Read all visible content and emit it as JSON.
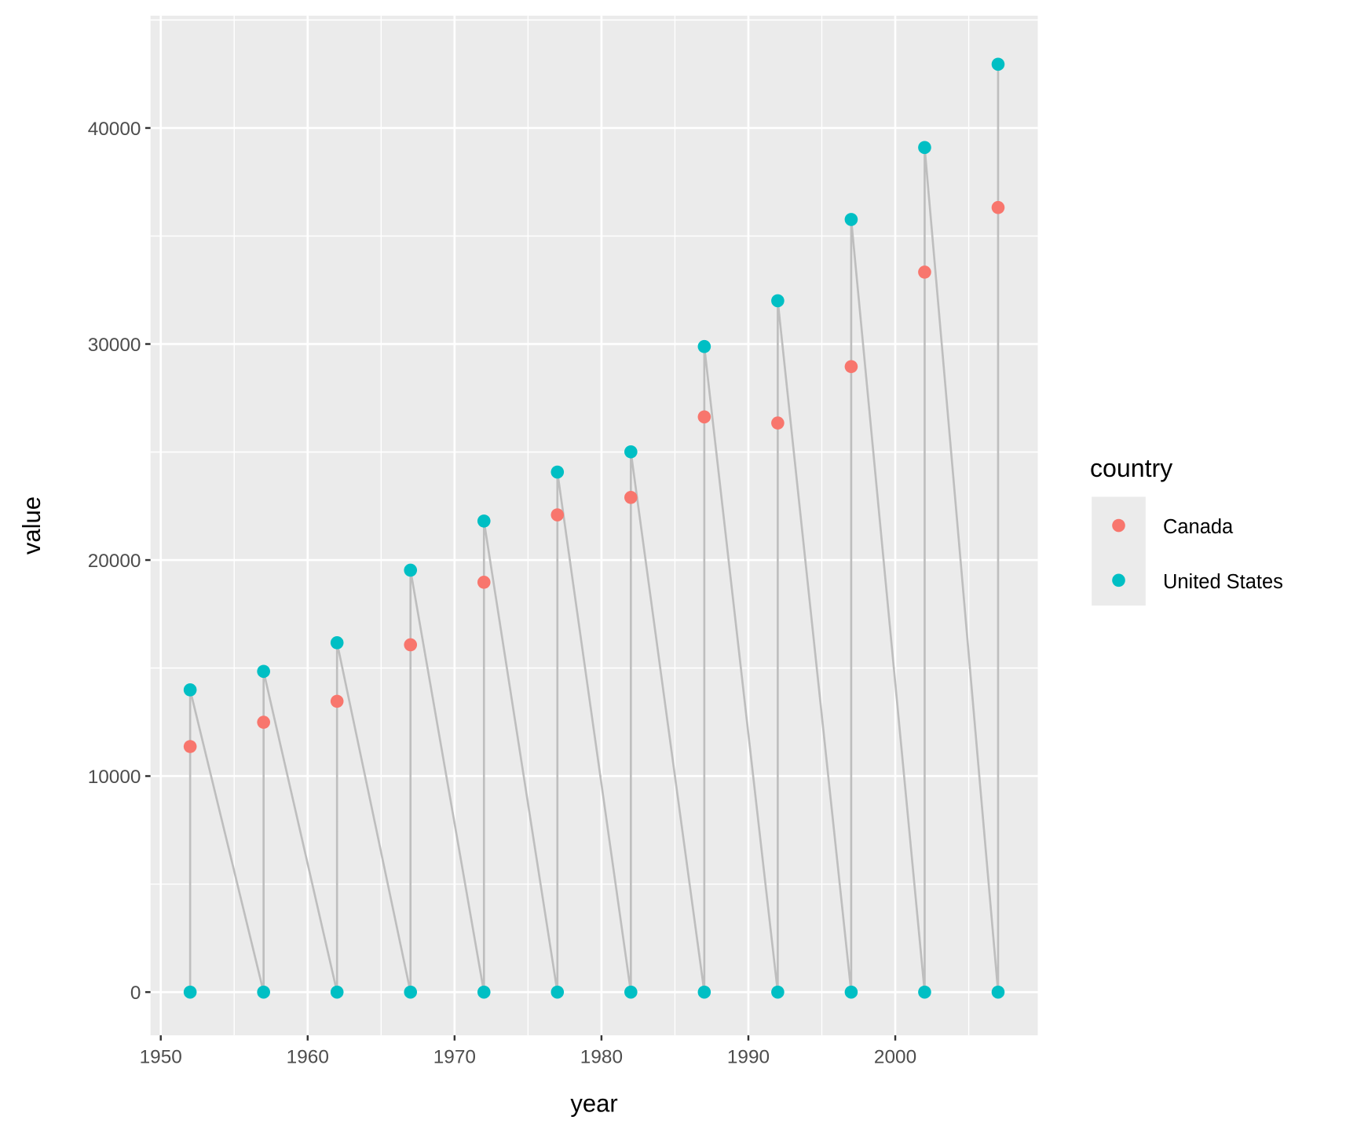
{
  "chart_data": {
    "type": "scatter",
    "title": "",
    "xlabel": "year",
    "ylabel": "value",
    "xlim": [
      1949.3,
      2009.7
    ],
    "ylim": [
      -2000,
      45200
    ],
    "x_ticks": [
      1950,
      1960,
      1970,
      1980,
      1990,
      2000
    ],
    "x_tick_labels": [
      "1950",
      "1960",
      "1970",
      "1980",
      "1990",
      "2000"
    ],
    "y_ticks": [
      0,
      10000,
      20000,
      30000,
      40000
    ],
    "y_tick_labels": [
      "0",
      "10000",
      "20000",
      "30000",
      "40000"
    ],
    "grid": true,
    "legend": {
      "title": "country",
      "position": "right",
      "entries": [
        "Canada",
        "United States"
      ]
    },
    "x": [
      1952,
      1957,
      1962,
      1967,
      1972,
      1977,
      1982,
      1987,
      1992,
      1997,
      2002,
      2007
    ],
    "series": [
      {
        "name": "Canada",
        "color": "#F8766D",
        "values": [
          11367,
          12490,
          13462,
          16077,
          18971,
          22091,
          22899,
          26627,
          26343,
          28955,
          33329,
          36319
        ]
      },
      {
        "name": "United States",
        "color": "#00BFC4",
        "values": [
          13990,
          14847,
          16173,
          19530,
          21806,
          24073,
          25010,
          29884,
          32004,
          35767,
          39097,
          42952
        ],
        "low_values": [
          0,
          0,
          0,
          0,
          0,
          0,
          0,
          0,
          0,
          0,
          0,
          0
        ]
      }
    ],
    "connecting_line_color": "#BEBEBE"
  }
}
